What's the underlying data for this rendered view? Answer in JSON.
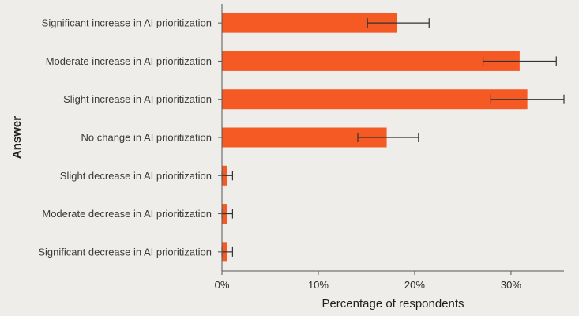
{
  "chart_data": {
    "type": "bar",
    "orientation": "horizontal",
    "categories": [
      "Significant increase in AI prioritization",
      "Moderate increase in AI prioritization",
      "Slight increase in AI prioritization",
      "No change in AI prioritization",
      "Slight decrease in AI prioritization",
      "Moderate decrease in AI prioritization",
      "Significant decrease in AI prioritization"
    ],
    "values": [
      18.2,
      30.9,
      31.7,
      17.1,
      0.5,
      0.5,
      0.5
    ],
    "error_low": [
      15.1,
      27.1,
      27.9,
      14.1,
      0.0,
      0.0,
      0.0
    ],
    "error_high": [
      21.5,
      34.7,
      35.5,
      20.4,
      1.1,
      1.1,
      1.1
    ],
    "xlabel": "Percentage of respondents",
    "ylabel": "Answer",
    "xlim": [
      0,
      35.5
    ],
    "xticks": [
      0,
      10,
      20,
      30
    ],
    "xtick_labels": [
      "0%",
      "10%",
      "20%",
      "30%"
    ],
    "grid": false,
    "colors": {
      "bar": "#f65a24",
      "error": "#333333",
      "axis": "#555555",
      "background": "#efedea"
    }
  }
}
